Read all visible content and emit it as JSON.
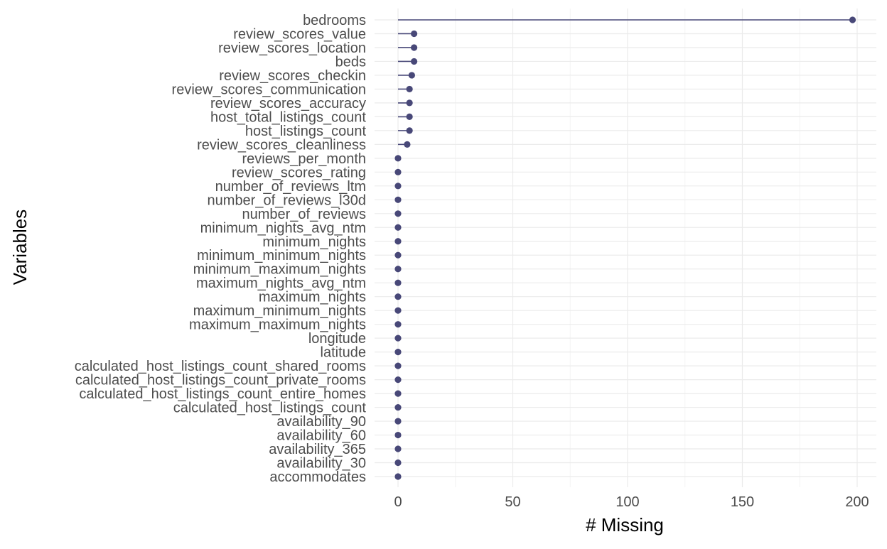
{
  "colors": {
    "series": "#484878",
    "grid_major": "#ebebeb",
    "grid_minor": "#f4f4f4",
    "tick_text": "#4d4d4d",
    "axis_title": "#000000"
  },
  "chart_data": {
    "type": "lollipop",
    "orientation": "horizontal",
    "xlabel": "# Missing",
    "ylabel": "Variables",
    "xlim": [
      0,
      200
    ],
    "x_ticks": [
      0,
      50,
      100,
      150,
      200
    ],
    "grid": true,
    "legend": "none",
    "categories": [
      "bedrooms",
      "review_scores_value",
      "review_scores_location",
      "beds",
      "review_scores_checkin",
      "review_scores_communication",
      "review_scores_accuracy",
      "host_total_listings_count",
      "host_listings_count",
      "review_scores_cleanliness",
      "reviews_per_month",
      "review_scores_rating",
      "number_of_reviews_ltm",
      "number_of_reviews_l30d",
      "number_of_reviews",
      "minimum_nights_avg_ntm",
      "minimum_nights",
      "minimum_minimum_nights",
      "minimum_maximum_nights",
      "maximum_nights_avg_ntm",
      "maximum_nights",
      "maximum_minimum_nights",
      "maximum_maximum_nights",
      "longitude",
      "latitude",
      "calculated_host_listings_count_shared_rooms",
      "calculated_host_listings_count_private_rooms",
      "calculated_host_listings_count_entire_homes",
      "calculated_host_listings_count",
      "availability_90",
      "availability_60",
      "availability_365",
      "availability_30",
      "accommodates"
    ],
    "values": [
      198,
      7,
      7,
      7,
      6,
      5,
      5,
      5,
      5,
      4,
      0,
      0,
      0,
      0,
      0,
      0,
      0,
      0,
      0,
      0,
      0,
      0,
      0,
      0,
      0,
      0,
      0,
      0,
      0,
      0,
      0,
      0,
      0,
      0
    ]
  }
}
